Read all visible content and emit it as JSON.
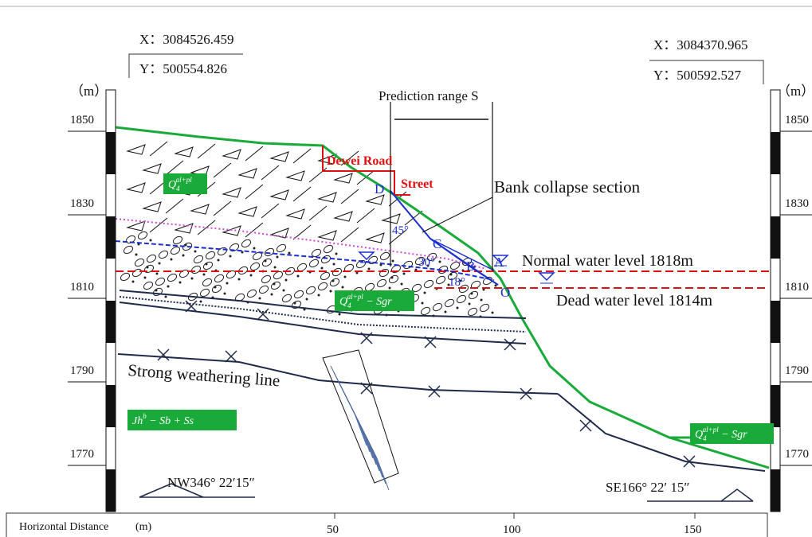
{
  "coordinates": {
    "left": {
      "x": "X：3084526.459",
      "y": "Y：500554.826"
    },
    "right": {
      "x": "X：3084370.965",
      "y": "Y：500592.527"
    }
  },
  "elevation_axis": {
    "unit": "（m）",
    "labels": [
      "1850",
      "1830",
      "1810",
      "1790",
      "1770"
    ]
  },
  "distance_axis": {
    "title": "Horizontal Distance",
    "unit": "(m)",
    "labels": [
      "50",
      "100",
      "150"
    ]
  },
  "annotations": {
    "prediction_range": "Prediction range S",
    "road": "Dewei Road",
    "street": "Street",
    "bank_collapse": "Bank collapse section",
    "normal_water": "Normal water level   1818m",
    "dead_water": "Dead water level 1814m",
    "weathering": "Strong weathering line",
    "points": [
      "D",
      "C",
      "B",
      "A",
      "O"
    ],
    "angles": [
      "45°",
      "30°",
      "18°"
    ],
    "bearing_left": "NW346°  22′15″",
    "bearing_right": "SE166°  22′ 15″"
  },
  "geology": [
    {
      "main": "Q",
      "subscript": "4",
      "superscript": "al+pl"
    },
    {
      "main": "Q",
      "subscript": "4",
      "superscript": "al+pl",
      "suffix": " − Sgr"
    },
    {
      "main": "Jh",
      "superscript": "b",
      "suffix": " − Sb + Ss"
    },
    {
      "main": "Q",
      "subscript": "4",
      "superscript": "al+pl",
      "suffix": " − Sgr"
    }
  ]
}
